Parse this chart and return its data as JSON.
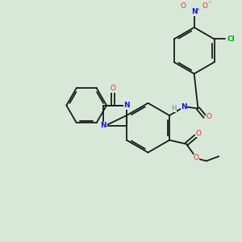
{
  "background_color": "#d8e8d8",
  "bond_color": "#1a1a1a",
  "atom_colors": {
    "N": "#1414ff",
    "O": "#ff2020",
    "Cl": "#00aa00",
    "H": "#4a9090",
    "C": "#1a1a1a"
  },
  "figsize": [
    3.0,
    3.0
  ],
  "dpi": 100,
  "lw": 1.3,
  "fs": 6.5
}
